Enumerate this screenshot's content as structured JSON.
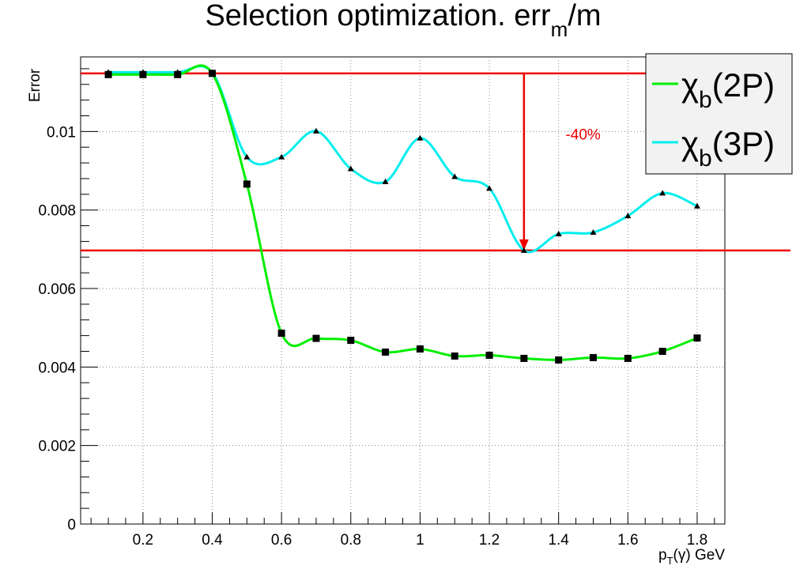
{
  "chart_data": {
    "type": "line",
    "title": {
      "main": "Selection optimization. err",
      "sub": "m",
      "tail": "/m"
    },
    "xlabel": {
      "base": "p",
      "sub": "T",
      "tail": "(γ) GeV"
    },
    "ylabel": "Error",
    "xlim": [
      0.02,
      1.88
    ],
    "ylim": [
      0,
      0.0119
    ],
    "x_ticks": [
      0.2,
      0.4,
      0.6,
      0.8,
      1.0,
      1.2,
      1.4,
      1.6,
      1.8
    ],
    "x_tick_labels": [
      "0.2",
      "0.4",
      "0.6",
      "0.8",
      "1",
      "1.2",
      "1.4",
      "1.6",
      "1.8"
    ],
    "y_ticks": [
      0,
      0.002,
      0.004,
      0.006,
      0.008,
      0.01
    ],
    "y_tick_labels": [
      "0",
      "0.002",
      "0.004",
      "0.006",
      "0.008",
      "0.01"
    ],
    "grid": true,
    "legend_position": "top-right",
    "series": [
      {
        "name": "χb(2P)",
        "legend": {
          "symbol": "χ",
          "sub": "b",
          "tail": "(2P)"
        },
        "color": "#00ee00",
        "marker": "square",
        "x": [
          0.1,
          0.2,
          0.3,
          0.4,
          0.5,
          0.6,
          0.7,
          0.8,
          0.9,
          1.0,
          1.1,
          1.2,
          1.3,
          1.4,
          1.5,
          1.6,
          1.7,
          1.8
        ],
        "values": [
          0.01145,
          0.01145,
          0.01145,
          0.01148,
          0.00866,
          0.00486,
          0.00473,
          0.00468,
          0.00438,
          0.00446,
          0.00428,
          0.0043,
          0.00422,
          0.00418,
          0.00424,
          0.00422,
          0.0044,
          0.00474
        ]
      },
      {
        "name": "χb(3P)",
        "legend": {
          "symbol": "χ",
          "sub": "b",
          "tail": "(3P)"
        },
        "color": "#00eeee",
        "marker": "triangle",
        "x": [
          0.1,
          0.2,
          0.3,
          0.4,
          0.5,
          0.6,
          0.7,
          0.8,
          0.9,
          1.0,
          1.1,
          1.2,
          1.3,
          1.4,
          1.5,
          1.6,
          1.7,
          1.8
        ],
        "values": [
          0.01151,
          0.01151,
          0.01151,
          0.0115,
          0.00935,
          0.00935,
          0.01001,
          0.00905,
          0.00872,
          0.00983,
          0.00885,
          0.00855,
          0.00697,
          0.00739,
          0.00743,
          0.00785,
          0.00843,
          0.0081
        ]
      }
    ],
    "reference_lines": [
      {
        "y": 0.01148,
        "color": "#ee0000"
      },
      {
        "y": 0.00697,
        "color": "#ee0000"
      }
    ],
    "arrow": {
      "x": 1.3,
      "y_from": 0.01148,
      "y_to": 0.00697,
      "color": "#ee0000"
    },
    "annotation": {
      "text": "-40%",
      "x": 1.42,
      "y": 0.0098,
      "color": "#ee0000"
    }
  }
}
